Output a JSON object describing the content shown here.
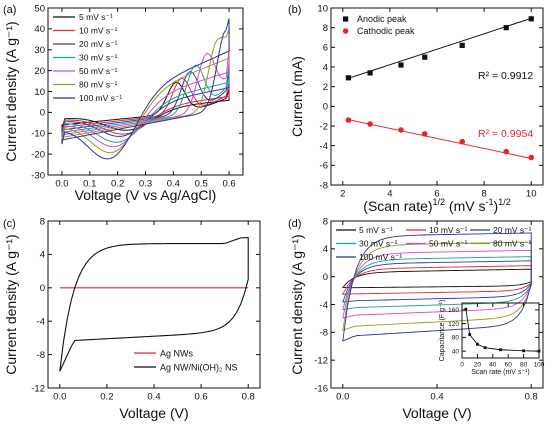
{
  "panels": [
    {
      "panel_label": "(a)",
      "chart_data": {
        "type": "line",
        "title": "",
        "xlabel": "Voltage (V vs Ag/AgCl)",
        "ylabel": "Current density (A g⁻¹)",
        "xlim": [
          -0.05,
          0.65
        ],
        "ylim": [
          -30,
          50
        ],
        "xticks": [
          0.0,
          0.1,
          0.2,
          0.3,
          0.4,
          0.5,
          0.6
        ],
        "xtick_labels": [
          "0.0",
          "0.1",
          "0.2",
          "0.3",
          "0.4",
          "0.5",
          "0.6"
        ],
        "yticks": [
          -30,
          -20,
          -10,
          0,
          10,
          20,
          30,
          40,
          50
        ],
        "ytick_labels": [
          "-30",
          "-20",
          "-10",
          "0",
          "10",
          "20",
          "30",
          "40",
          "50"
        ],
        "legend_position": "top-left",
        "grid": false,
        "series": [
          {
            "name": "5 mV s⁻¹",
            "color": "#111111",
            "peak_x": 0.41,
            "peak_y": 15,
            "end_y": 11,
            "cath_x": 0.24,
            "cath_y": -9
          },
          {
            "name": "10 mV s⁻¹",
            "color": "#e8252f",
            "peak_x": 0.43,
            "peak_y": 17,
            "end_y": 14,
            "cath_x": 0.23,
            "cath_y": -11
          },
          {
            "name": "20 mV s⁻¹",
            "color": "#2d3aa8",
            "peak_x": 0.46,
            "peak_y": 20,
            "end_y": 20,
            "cath_x": 0.22,
            "cath_y": -13
          },
          {
            "name": "30 mV s⁻¹",
            "color": "#1aa39a",
            "peak_x": 0.48,
            "peak_y": 23,
            "end_y": 24,
            "cath_x": 0.21,
            "cath_y": -16
          },
          {
            "name": "50 mV s⁻¹",
            "color": "#d94ad0",
            "peak_x": 0.52,
            "peak_y": 28,
            "end_y": 31,
            "cath_x": 0.2,
            "cath_y": -19
          },
          {
            "name": "80 mV s⁻¹",
            "color": "#9a9a26",
            "peak_x": 0.56,
            "peak_y": 34,
            "end_y": 40,
            "cath_x": 0.19,
            "cath_y": -23
          },
          {
            "name": "100 mV s⁻¹",
            "color": "#2b3590",
            "peak_x": 0.59,
            "peak_y": 38,
            "end_y": 45,
            "cath_x": 0.18,
            "cath_y": -26
          }
        ]
      }
    },
    {
      "panel_label": "(b)",
      "chart_data": {
        "type": "scatter",
        "title": "",
        "xlabel": "(Scan rate)¹ᐟ² (mV s⁻¹)¹ᐟ²",
        "xlabel_main": "(Scan rate)",
        "xlabel_mid": " (mV s",
        "xlabel_end": ")",
        "xlabel_sup1": "1/2",
        "xlabel_sup2": "-1",
        "xlabel_sup3": "1/2",
        "ylabel": "Current (mA)",
        "xlim": [
          1.5,
          10.5
        ],
        "ylim": [
          -8,
          10
        ],
        "xticks": [
          2,
          4,
          6,
          8,
          10
        ],
        "xtick_labels": [
          "2",
          "4",
          "6",
          "8",
          "10"
        ],
        "yticks": [
          -8,
          -6,
          -4,
          -2,
          0,
          2,
          4,
          6,
          8,
          10
        ],
        "ytick_labels": [
          "-8",
          "-6",
          "-4",
          "-2",
          "0",
          "2",
          "4",
          "6",
          "8",
          "10"
        ],
        "legend_position": "top-left",
        "x": [
          2.24,
          3.16,
          4.47,
          5.48,
          7.07,
          8.94,
          10.0
        ],
        "series": [
          {
            "name": "Anodic peak",
            "color": "#111111",
            "marker": "square",
            "values": [
              2.9,
              3.4,
              4.2,
              5.0,
              6.2,
              8.0,
              8.9
            ],
            "fit": [
              2.85,
              8.95
            ],
            "r2_label": "R² = 0.9912"
          },
          {
            "name": "Cathodic peak",
            "color": "#e8252f",
            "marker": "circle",
            "values": [
              -1.4,
              -1.8,
              -2.4,
              -2.8,
              -3.6,
              -4.6,
              -5.2
            ],
            "fit": [
              -1.35,
              -5.3
            ],
            "r2_label": "R² = 0.9954"
          }
        ]
      }
    },
    {
      "panel_label": "(c)",
      "chart_data": {
        "type": "line",
        "title": "",
        "xlabel": "Voltage (V)",
        "ylabel": "Current density (A g⁻¹)",
        "xlim": [
          -0.05,
          0.85
        ],
        "ylim": [
          -12,
          8
        ],
        "xticks": [
          0.0,
          0.2,
          0.4,
          0.6,
          0.8
        ],
        "xtick_labels": [
          "0.0",
          "0.2",
          "0.4",
          "0.6",
          "0.8"
        ],
        "yticks": [
          -12,
          -8,
          -4,
          0,
          4,
          8
        ],
        "ytick_labels": [
          "-12",
          "-8",
          "-4",
          "0",
          "4",
          "8"
        ],
        "legend_position": "bottom-right",
        "series": [
          {
            "name": "Ag NWs",
            "color": "#e8252f"
          },
          {
            "name": "Ag NW/Ni(OH)₂ NS",
            "color": "#111111"
          }
        ]
      }
    },
    {
      "panel_label": "(d)",
      "chart_data": {
        "type": "line",
        "title": "",
        "xlabel": "Voltage (V)",
        "ylabel": "Current density (A g⁻¹)",
        "xlim": [
          -0.05,
          0.85
        ],
        "ylim": [
          -16,
          8
        ],
        "xticks": [
          0.0,
          0.4,
          0.8
        ],
        "xtick_labels": [
          "0.0",
          "0.4",
          "0.8"
        ],
        "yticks": [
          -16,
          -12,
          -8,
          -4,
          0,
          4,
          8
        ],
        "ytick_labels": [
          "-16",
          "-12",
          "-8",
          "-4",
          "0",
          "4",
          "8"
        ],
        "legend_position": "top",
        "series": [
          {
            "name": "5 mV s⁻¹",
            "color": "#111111",
            "top": 0.6,
            "bot": -1.4
          },
          {
            "name": "10 mV s⁻¹",
            "color": "#e8252f",
            "top": 1.1,
            "bot": -2.3
          },
          {
            "name": "20 mV s⁻¹",
            "color": "#2d3aa8",
            "top": 1.8,
            "bot": -3.3
          },
          {
            "name": "30 mV s⁻¹",
            "color": "#1aa39a",
            "top": 2.4,
            "bot": -4.3
          },
          {
            "name": "50 mV s⁻¹",
            "color": "#d94ad0",
            "top": 3.3,
            "bot": -5.4
          },
          {
            "name": "80 mV s⁻¹",
            "color": "#9a9a26",
            "top": 4.5,
            "bot": -7.0
          },
          {
            "name": "100 mV s⁻¹",
            "color": "#2b3590",
            "top": 5.8,
            "bot": -8.4
          }
        ],
        "inset": {
          "type": "line",
          "xlabel": "Scan rate (mV s⁻¹)",
          "ylabel": "Capacitance (F g⁻¹)",
          "xlim": [
            0,
            100
          ],
          "ylim": [
            20,
            180
          ],
          "xticks": [
            0,
            20,
            40,
            60,
            80,
            100
          ],
          "xtick_labels": [
            "0",
            "20",
            "40",
            "60",
            "80",
            "100"
          ],
          "yticks": [
            40,
            80,
            120,
            160
          ],
          "ytick_labels": [
            "40",
            "80",
            "120",
            "160"
          ],
          "x": [
            5,
            10,
            20,
            30,
            50,
            80,
            100
          ],
          "values": [
            162,
            88,
            60,
            50,
            44,
            41,
            40
          ]
        }
      }
    }
  ]
}
